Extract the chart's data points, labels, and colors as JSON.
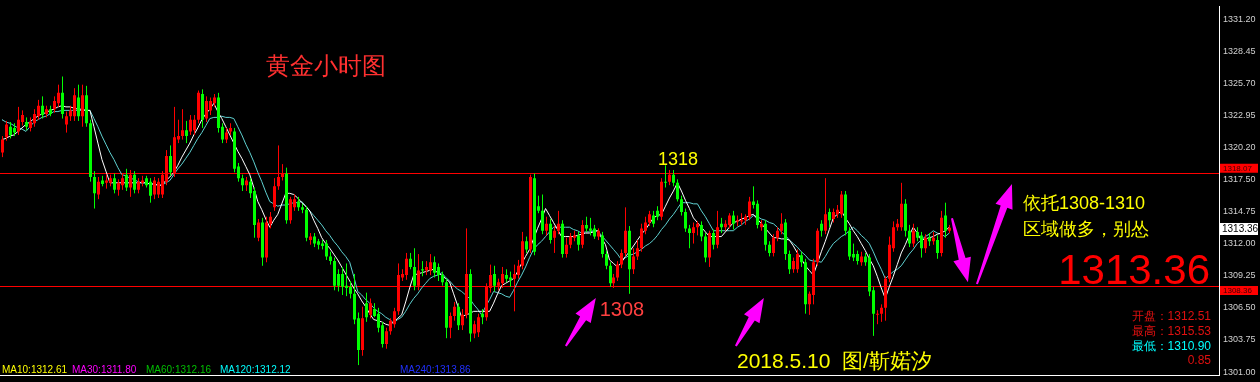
{
  "chart_data": {
    "type": "candlestick",
    "title": "黄金小时图",
    "categories": [
      null,
      null,
      null,
      null,
      null,
      null,
      null,
      null,
      null,
      null,
      null,
      null,
      null,
      null,
      null,
      null,
      null,
      null,
      null,
      null,
      null,
      null,
      null,
      null,
      null,
      null,
      null,
      null,
      null,
      null,
      null,
      null,
      null,
      null,
      null,
      null,
      null,
      null,
      null,
      null,
      null,
      null,
      null,
      null,
      null,
      null,
      null,
      null,
      null,
      null,
      null,
      null,
      null,
      null,
      null,
      null,
      null,
      null,
      null,
      null,
      null,
      null,
      null,
      null,
      null,
      null,
      null,
      null,
      null,
      null,
      null,
      null,
      null,
      null,
      null,
      null,
      null,
      null,
      null,
      null,
      null,
      null,
      null,
      null,
      null,
      null,
      null,
      null,
      null,
      null,
      null,
      null,
      null,
      null,
      null,
      null,
      null,
      null,
      null,
      null,
      null,
      null,
      null,
      null,
      null,
      null,
      null,
      null,
      null,
      null,
      null,
      null,
      null,
      null,
      null,
      null,
      null,
      null,
      null,
      null,
      null,
      null,
      null,
      null,
      null,
      null,
      null,
      null,
      null,
      null,
      null,
      null,
      null,
      null,
      null,
      null,
      null,
      null,
      null,
      null,
      null,
      null,
      null,
      null,
      null,
      null,
      null,
      null,
      null,
      null,
      null,
      null,
      null,
      null,
      null,
      null,
      null,
      null,
      null,
      null,
      null,
      null,
      null,
      null,
      null,
      null,
      null,
      null,
      null,
      null,
      null,
      null,
      null,
      null,
      null,
      null,
      null,
      null,
      null,
      null,
      null,
      null,
      null,
      null,
      null,
      null,
      null,
      null,
      null,
      null,
      null,
      null,
      null,
      null,
      null,
      null,
      null,
      null,
      null,
      null,
      null,
      null,
      null,
      null,
      null,
      null,
      null,
      null,
      null,
      null,
      null,
      null,
      null,
      null,
      null,
      null,
      null,
      null,
      null,
      null,
      null,
      null,
      null,
      null,
      null,
      null,
      null,
      null,
      null,
      null,
      null,
      null,
      null,
      null,
      null,
      null,
      null,
      null
    ],
    "ohlc": [
      [
        1319.8,
        1321.2,
        1319.4,
        1320.9
      ],
      [
        1321.1,
        1322.5,
        1320.8,
        1322.2
      ],
      [
        1322.0,
        1322.4,
        1321.0,
        1321.3
      ],
      [
        1321.9,
        1322.3,
        1321.2,
        1321.5
      ],
      [
        1321.6,
        1323.7,
        1321.3,
        1322.6
      ],
      [
        1322.4,
        1323.4,
        1322.1,
        1323.0
      ],
      [
        1322.4,
        1322.8,
        1321.7,
        1322.0
      ],
      [
        1321.9,
        1322.8,
        1321.6,
        1322.4
      ],
      [
        1322.3,
        1323.5,
        1322.0,
        1323.1
      ],
      [
        1322.9,
        1324.3,
        1322.6,
        1323.8
      ],
      [
        1323.8,
        1324.6,
        1322.7,
        1323.0
      ],
      [
        1323.1,
        1323.8,
        1322.8,
        1323.5
      ],
      [
        1323.5,
        1323.8,
        1322.9,
        1323.1
      ],
      [
        1323.5,
        1324.6,
        1323.2,
        1324.2
      ],
      [
        1324.0,
        1325.6,
        1323.7,
        1324.9
      ],
      [
        1324.9,
        1326.3,
        1322.7,
        1323.1
      ],
      [
        1322.2,
        1323.3,
        1321.5,
        1322.9
      ],
      [
        1322.9,
        1323.8,
        1322.5,
        1323.4
      ],
      [
        1322.9,
        1325.3,
        1322.5,
        1324.7
      ],
      [
        1324.5,
        1325.6,
        1322.5,
        1322.9
      ],
      [
        1322.9,
        1325.6,
        1322.0,
        1324.7
      ],
      [
        1324.7,
        1325.5,
        1322.0,
        1322.3
      ],
      [
        1322.3,
        1322.6,
        1317.3,
        1317.7
      ],
      [
        1317.7,
        1318.2,
        1315.0,
        1316.3
      ],
      [
        1316.2,
        1317.7,
        1315.8,
        1317.3
      ],
      [
        1317.4,
        1317.8,
        1316.9,
        1317.1
      ],
      [
        1317.2,
        1317.9,
        1316.7,
        1317.4
      ],
      [
        1317.2,
        1317.9,
        1316.9,
        1317.6
      ],
      [
        1317.6,
        1318.0,
        1316.3,
        1316.6
      ],
      [
        1316.6,
        1317.5,
        1316.1,
        1317.2
      ],
      [
        1317.0,
        1318.0,
        1316.6,
        1317.6
      ],
      [
        1317.9,
        1318.4,
        1316.5,
        1316.8
      ],
      [
        1316.8,
        1318.3,
        1316.0,
        1317.9
      ],
      [
        1317.9,
        1318.2,
        1316.3,
        1316.6
      ],
      [
        1316.6,
        1317.6,
        1316.3,
        1317.3
      ],
      [
        1317.2,
        1317.8,
        1316.9,
        1317.4
      ],
      [
        1317.6,
        1317.8,
        1316.8,
        1317.0
      ],
      [
        1317.3,
        1317.6,
        1315.5,
        1316.1
      ],
      [
        1316.2,
        1317.7,
        1315.8,
        1317.4
      ],
      [
        1316.2,
        1317.6,
        1315.9,
        1317.3
      ],
      [
        1316.2,
        1318.2,
        1315.9,
        1317.9
      ],
      [
        1317.3,
        1320.0,
        1317.0,
        1319.5
      ],
      [
        1319.5,
        1320.4,
        1317.8,
        1318.1
      ],
      [
        1318.0,
        1323.7,
        1317.7,
        1321.1
      ],
      [
        1320.9,
        1322.6,
        1320.6,
        1321.2
      ],
      [
        1321.2,
        1323.5,
        1320.9,
        1321.7
      ],
      [
        1321.7,
        1322.5,
        1320.6,
        1321.2
      ],
      [
        1321.6,
        1323.0,
        1321.3,
        1322.6
      ],
      [
        1321.7,
        1323.0,
        1321.3,
        1322.6
      ],
      [
        1322.6,
        1325.1,
        1322.3,
        1324.9
      ],
      [
        1324.8,
        1325.2,
        1321.9,
        1322.6
      ],
      [
        1322.7,
        1324.6,
        1322.4,
        1324.2
      ],
      [
        1323.4,
        1324.5,
        1323.0,
        1324.2
      ],
      [
        1324.0,
        1324.8,
        1323.7,
        1324.5
      ],
      [
        1324.5,
        1324.9,
        1321.5,
        1321.9
      ],
      [
        1322.0,
        1322.3,
        1320.6,
        1320.9
      ],
      [
        1320.9,
        1321.9,
        1320.6,
        1321.5
      ],
      [
        1321.6,
        1322.3,
        1321.3,
        1321.9
      ],
      [
        1321.6,
        1321.9,
        1318.1,
        1318.4
      ],
      [
        1318.6,
        1318.9,
        1317.3,
        1317.6
      ],
      [
        1317.6,
        1317.9,
        1316.5,
        1317.0
      ],
      [
        1317.0,
        1317.7,
        1316.5,
        1317.4
      ],
      [
        1317.3,
        1317.6,
        1315.9,
        1316.3
      ],
      [
        1316.5,
        1316.8,
        1312.5,
        1313.6
      ],
      [
        1312.5,
        1314.1,
        1312.2,
        1313.8
      ],
      [
        1313.8,
        1314.2,
        1310.1,
        1310.8
      ],
      [
        1310.8,
        1314.3,
        1310.4,
        1313.8
      ],
      [
        1313.7,
        1314.7,
        1313.3,
        1314.3
      ],
      [
        1315.1,
        1317.6,
        1314.8,
        1316.9
      ],
      [
        1316.9,
        1320.4,
        1316.6,
        1317.7
      ],
      [
        1317.7,
        1318.8,
        1317.4,
        1318.0
      ],
      [
        1318.0,
        1318.5,
        1313.7,
        1314.0
      ],
      [
        1314.0,
        1316.0,
        1313.7,
        1315.8
      ],
      [
        1315.1,
        1316.2,
        1314.8,
        1315.8
      ],
      [
        1315.6,
        1316.0,
        1314.8,
        1315.1
      ],
      [
        1315.1,
        1315.4,
        1314.6,
        1314.9
      ],
      [
        1314.9,
        1315.2,
        1312.2,
        1312.5
      ],
      [
        1312.3,
        1312.9,
        1311.9,
        1312.6
      ],
      [
        1312.6,
        1312.9,
        1311.7,
        1312.0
      ],
      [
        1312.2,
        1312.4,
        1311.5,
        1311.9
      ],
      [
        1312.0,
        1312.3,
        1311.5,
        1311.8
      ],
      [
        1312.0,
        1312.3,
        1310.6,
        1310.9
      ],
      [
        1310.9,
        1311.3,
        1310.2,
        1310.5
      ],
      [
        1310.5,
        1310.8,
        1308.0,
        1308.4
      ],
      [
        1309.4,
        1309.8,
        1307.9,
        1308.4
      ],
      [
        1309.4,
        1310.0,
        1307.6,
        1308.3
      ],
      [
        1308.4,
        1310.3,
        1307.5,
        1308.2
      ],
      [
        1308.3,
        1308.8,
        1307.3,
        1307.7
      ],
      [
        1307.7,
        1309.4,
        1305.1,
        1305.5
      ],
      [
        1305.6,
        1306.1,
        1301.6,
        1302.9
      ],
      [
        1302.9,
        1306.6,
        1302.4,
        1305.6
      ],
      [
        1306.9,
        1307.8,
        1305.3,
        1305.7
      ],
      [
        1305.9,
        1307.3,
        1305.6,
        1306.9
      ],
      [
        1306.4,
        1306.9,
        1305.7,
        1305.8
      ],
      [
        1306.0,
        1306.5,
        1304.4,
        1304.8
      ],
      [
        1305.0,
        1305.3,
        1303.1,
        1303.4
      ],
      [
        1303.4,
        1304.8,
        1303.0,
        1304.5
      ],
      [
        1304.5,
        1305.6,
        1304.2,
        1305.4
      ],
      [
        1305.1,
        1306.5,
        1304.8,
        1306.2
      ],
      [
        1306.2,
        1310.3,
        1305.9,
        1309.3
      ],
      [
        1309.1,
        1309.8,
        1308.8,
        1309.4
      ],
      [
        1309.3,
        1311.2,
        1308.9,
        1310.7
      ],
      [
        1310.7,
        1311.2,
        1309.8,
        1310.0
      ],
      [
        1310.0,
        1311.6,
        1308.0,
        1308.4
      ],
      [
        1308.4,
        1311.1,
        1308.0,
        1309.7
      ],
      [
        1309.8,
        1310.5,
        1309.2,
        1309.7
      ],
      [
        1309.7,
        1310.5,
        1309.3,
        1310.0
      ],
      [
        1309.7,
        1311.1,
        1309.3,
        1310.4
      ],
      [
        1310.4,
        1310.9,
        1309.1,
        1309.5
      ],
      [
        1310.0,
        1310.3,
        1308.8,
        1309.3
      ],
      [
        1309.3,
        1309.6,
        1308.4,
        1308.7
      ],
      [
        1308.7,
        1309.0,
        1303.9,
        1304.8
      ],
      [
        1304.8,
        1306.1,
        1303.9,
        1305.8
      ],
      [
        1305.8,
        1307.0,
        1305.4,
        1306.6
      ],
      [
        1306.6,
        1306.9,
        1304.6,
        1305.0
      ],
      [
        1305.0,
        1306.4,
        1304.6,
        1305.9
      ],
      [
        1305.9,
        1313.3,
        1305.6,
        1309.4
      ],
      [
        1309.4,
        1309.8,
        1303.6,
        1304.3
      ],
      [
        1304.3,
        1305.4,
        1303.9,
        1305.1
      ],
      [
        1304.4,
        1306.0,
        1304.0,
        1305.7
      ],
      [
        1306.0,
        1306.4,
        1305.1,
        1305.7
      ],
      [
        1305.7,
        1308.6,
        1305.4,
        1308.3
      ],
      [
        1308.2,
        1310.2,
        1307.8,
        1309.3
      ],
      [
        1309.4,
        1310.1,
        1307.9,
        1308.4
      ],
      [
        1308.4,
        1309.0,
        1308.0,
        1308.7
      ],
      [
        1308.6,
        1310.0,
        1308.2,
        1309.4
      ],
      [
        1309.3,
        1309.8,
        1308.7,
        1309.0
      ],
      [
        1309.1,
        1309.6,
        1308.3,
        1308.9
      ],
      [
        1309.0,
        1310.2,
        1306.2,
        1309.4
      ],
      [
        1309.3,
        1310.6,
        1309.0,
        1310.1
      ],
      [
        1310.1,
        1313.0,
        1309.8,
        1312.2
      ],
      [
        1312.2,
        1312.6,
        1311.2,
        1311.5
      ],
      [
        1311.5,
        1317.9,
        1311.2,
        1317.7
      ],
      [
        1317.6,
        1318.0,
        1311.0,
        1311.3
      ],
      [
        1315.2,
        1316.1,
        1314.6,
        1314.8
      ],
      [
        1314.8,
        1316.2,
        1312.8,
        1313.1
      ],
      [
        1313.1,
        1314.3,
        1312.7,
        1313.7
      ],
      [
        1313.7,
        1314.1,
        1312.0,
        1312.3
      ],
      [
        1312.5,
        1313.5,
        1311.2,
        1313.1
      ],
      [
        1313.1,
        1314.8,
        1312.8,
        1313.7
      ],
      [
        1313.7,
        1314.0,
        1310.8,
        1311.1
      ],
      [
        1311.1,
        1312.5,
        1310.8,
        1311.9
      ],
      [
        1311.9,
        1312.9,
        1311.6,
        1312.6
      ],
      [
        1312.5,
        1313.1,
        1312.2,
        1312.7
      ],
      [
        1312.7,
        1313.0,
        1311.4,
        1311.9
      ],
      [
        1311.9,
        1314.0,
        1311.6,
        1313.6
      ],
      [
        1313.6,
        1314.3,
        1313.0,
        1313.3
      ],
      [
        1313.3,
        1314.2,
        1312.7,
        1313.1
      ],
      [
        1313.3,
        1313.6,
        1312.4,
        1312.6
      ],
      [
        1312.6,
        1313.3,
        1312.3,
        1313.1
      ],
      [
        1312.7,
        1313.0,
        1310.8,
        1311.1
      ],
      [
        1311.1,
        1311.4,
        1309.8,
        1310.1
      ],
      [
        1310.1,
        1310.4,
        1308.3,
        1308.6
      ],
      [
        1308.6,
        1309.4,
        1308.2,
        1309.1
      ],
      [
        1309.1,
        1310.5,
        1308.8,
        1310.2
      ],
      [
        1310.2,
        1311.5,
        1309.9,
        1311.2
      ],
      [
        1311.2,
        1315.1,
        1310.9,
        1313.1
      ],
      [
        1313.1,
        1313.5,
        1307.7,
        1309.8
      ],
      [
        1309.8,
        1311.6,
        1309.4,
        1310.9
      ],
      [
        1310.9,
        1312.3,
        1310.6,
        1311.6
      ],
      [
        1311.6,
        1313.7,
        1311.3,
        1313.3
      ],
      [
        1313.1,
        1314.3,
        1312.8,
        1313.8
      ],
      [
        1313.8,
        1314.8,
        1313.5,
        1314.5
      ],
      [
        1314.4,
        1314.8,
        1313.4,
        1313.7
      ],
      [
        1314.8,
        1315.2,
        1314.0,
        1314.3
      ],
      [
        1314.3,
        1317.6,
        1314.0,
        1317.3
      ],
      [
        1317.3,
        1318.7,
        1316.8,
        1317.2
      ],
      [
        1317.3,
        1318.3,
        1317.0,
        1317.9
      ],
      [
        1317.9,
        1318.3,
        1316.9,
        1317.2
      ],
      [
        1317.2,
        1317.5,
        1315.6,
        1315.8
      ],
      [
        1315.8,
        1316.1,
        1314.4,
        1314.7
      ],
      [
        1314.7,
        1315.0,
        1313.0,
        1313.3
      ],
      [
        1313.3,
        1313.6,
        1311.6,
        1312.9
      ],
      [
        1312.9,
        1313.8,
        1312.0,
        1313.4
      ],
      [
        1313.4,
        1313.9,
        1312.7,
        1313.7
      ],
      [
        1313.6,
        1313.9,
        1312.2,
        1312.6
      ],
      [
        1312.6,
        1312.9,
        1310.4,
        1310.8
      ],
      [
        1310.8,
        1313.1,
        1310.0,
        1312.9
      ],
      [
        1312.9,
        1313.2,
        1311.5,
        1311.9
      ],
      [
        1311.9,
        1314.8,
        1311.6,
        1313.4
      ],
      [
        1313.7,
        1314.2,
        1312.9,
        1313.4
      ],
      [
        1313.4,
        1314.0,
        1313.1,
        1313.7
      ],
      [
        1313.6,
        1314.6,
        1313.3,
        1314.4
      ],
      [
        1314.4,
        1314.8,
        1313.2,
        1313.7
      ],
      [
        1313.9,
        1314.4,
        1313.5,
        1314.0
      ],
      [
        1313.9,
        1314.6,
        1313.6,
        1314.0
      ],
      [
        1314.0,
        1314.5,
        1313.6,
        1314.3
      ],
      [
        1314.3,
        1316.0,
        1314.0,
        1315.6
      ],
      [
        1315.6,
        1316.9,
        1315.0,
        1315.3
      ],
      [
        1315.4,
        1315.7,
        1313.3,
        1313.6
      ],
      [
        1313.4,
        1314.0,
        1313.1,
        1313.7
      ],
      [
        1313.7,
        1314.0,
        1311.4,
        1311.9
      ],
      [
        1311.9,
        1312.2,
        1310.9,
        1311.2
      ],
      [
        1311.2,
        1312.8,
        1310.9,
        1312.5
      ],
      [
        1312.5,
        1313.4,
        1312.2,
        1313.1
      ],
      [
        1313.1,
        1314.6,
        1312.8,
        1313.7
      ],
      [
        1313.8,
        1314.1,
        1310.6,
        1311.1
      ],
      [
        1311.1,
        1311.4,
        1309.4,
        1309.8
      ],
      [
        1309.8,
        1310.8,
        1309.5,
        1310.5
      ],
      [
        1309.8,
        1311.5,
        1309.5,
        1311.1
      ],
      [
        1311.0,
        1311.3,
        1310.0,
        1310.4
      ],
      [
        1310.4,
        1310.7,
        1306.0,
        1306.8
      ],
      [
        1306.8,
        1307.9,
        1305.9,
        1307.7
      ],
      [
        1307.6,
        1310.7,
        1306.8,
        1310.4
      ],
      [
        1310.4,
        1313.3,
        1310.1,
        1313.1
      ],
      [
        1313.7,
        1314.0,
        1312.6,
        1313.1
      ],
      [
        1313.1,
        1317.6,
        1312.8,
        1314.5
      ],
      [
        1314.7,
        1315.0,
        1313.4,
        1314.0
      ],
      [
        1314.1,
        1315.0,
        1313.8,
        1314.7
      ],
      [
        1314.5,
        1315.3,
        1314.2,
        1314.9
      ],
      [
        1314.5,
        1316.5,
        1314.2,
        1316.2
      ],
      [
        1316.2,
        1316.5,
        1312.7,
        1313.1
      ],
      [
        1313.1,
        1313.4,
        1310.6,
        1310.9
      ],
      [
        1311.1,
        1312.0,
        1310.5,
        1310.8
      ],
      [
        1311.1,
        1311.4,
        1310.2,
        1310.5
      ],
      [
        1310.4,
        1311.3,
        1310.1,
        1310.9
      ],
      [
        1310.9,
        1311.2,
        1310.1,
        1310.4
      ],
      [
        1310.8,
        1311.1,
        1307.5,
        1307.9
      ],
      [
        1308.0,
        1308.3,
        1304.1,
        1306.0
      ],
      [
        1305.9,
        1306.3,
        1305.1,
        1306.0
      ],
      [
        1306.0,
        1306.8,
        1305.3,
        1306.5
      ],
      [
        1306.5,
        1309.2,
        1305.4,
        1309.0
      ],
      [
        1309.0,
        1312.6,
        1308.7,
        1311.9
      ],
      [
        1311.6,
        1313.9,
        1311.3,
        1313.4
      ],
      [
        1313.4,
        1314.1,
        1313.1,
        1313.7
      ],
      [
        1313.4,
        1317.2,
        1313.1,
        1315.4
      ],
      [
        1315.4,
        1315.8,
        1312.6,
        1313.1
      ],
      [
        1313.1,
        1313.6,
        1311.7,
        1312.0
      ],
      [
        1312.0,
        1313.7,
        1311.7,
        1313.1
      ],
      [
        1313.0,
        1313.4,
        1312.2,
        1312.5
      ],
      [
        1312.7,
        1313.0,
        1310.8,
        1311.6
      ],
      [
        1311.6,
        1312.8,
        1311.2,
        1312.5
      ],
      [
        1312.5,
        1312.9,
        1311.8,
        1312.2
      ],
      [
        1312.2,
        1313.0,
        1311.9,
        1312.5
      ],
      [
        1312.3,
        1312.7,
        1310.7,
        1311.2
      ],
      [
        1311.2,
        1314.8,
        1310.9,
        1314.2
      ],
      [
        1314.4,
        1315.5,
        1312.5,
        1313.1
      ],
      [
        1313.1,
        1313.6,
        1312.9,
        1313.36
      ]
    ],
    "colors": [
      "#ff0000",
      "#ff0000",
      "#00ff00",
      "#00ff00",
      "#ff0000",
      "#ff0000",
      "#00ff00",
      "#ff0000",
      "#ff0000",
      "#ff0000",
      "#00ff00",
      "#ff0000",
      "#00ff00",
      "#ff0000",
      "#ff0000",
      "#00ff00",
      "#ff0000",
      "#ff0000",
      "#ff0000",
      "#00ff00",
      "#ff0000",
      "#00ff00",
      "#00ff00",
      "#00ff00",
      "#ff0000",
      "#00ff00",
      "#ff0000",
      "#ff0000",
      "#00ff00",
      "#ff0000",
      "#ff0000",
      "#00ff00",
      "#ff0000",
      "#00ff00",
      "#ff0000",
      "#ff0000",
      "#00ff00",
      "#00ff00",
      "#ff0000",
      "#ff0000",
      "#ff0000",
      "#ff0000",
      "#00ff00",
      "#ff0000",
      "#ff0000",
      "#ff0000",
      "#00ff00",
      "#ff0000",
      "#ff0000",
      "#ff0000",
      "#00ff00",
      "#ff0000",
      "#ff0000",
      "#ff0000",
      "#00ff00",
      "#00ff00",
      "#ff0000",
      "#ff0000",
      "#00ff00",
      "#00ff00",
      "#00ff00",
      "#ff0000",
      "#00ff00",
      "#00ff00",
      "#ff0000",
      "#00ff00",
      "#ff0000",
      "#ff0000",
      "#ff0000",
      "#ff0000",
      "#ff0000",
      "#00ff00",
      "#ff0000",
      "#ff0000",
      "#00ff00",
      "#00ff00",
      "#00ff00",
      "#ff0000",
      "#00ff00",
      "#00ff00",
      "#00ff00",
      "#00ff00",
      "#00ff00",
      "#00ff00",
      "#00ff00",
      "#00ff00",
      "#00ff00",
      "#00ff00",
      "#00ff00",
      "#00ff00",
      "#ff0000",
      "#00ff00",
      "#ff0000",
      "#00ff00",
      "#00ff00",
      "#00ff00",
      "#ff0000",
      "#ff0000",
      "#ff0000",
      "#ff0000",
      "#ff0000",
      "#ff0000",
      "#00ff00",
      "#00ff00",
      "#ff0000",
      "#00ff00",
      "#ff0000",
      "#ff0000",
      "#00ff00",
      "#00ff00",
      "#00ff00",
      "#00ff00",
      "#ff0000",
      "#ff0000",
      "#00ff00",
      "#ff0000",
      "#ff0000",
      "#00ff00",
      "#ff0000",
      "#ff0000",
      "#00ff00",
      "#ff0000",
      "#ff0000",
      "#00ff00",
      "#ff0000",
      "#ff0000",
      "#00ff00",
      "#00ff00",
      "#ff0000",
      "#ff0000",
      "#ff0000",
      "#00ff00",
      "#ff0000",
      "#00ff00",
      "#00ff00",
      "#00ff00",
      "#ff0000",
      "#00ff00",
      "#ff0000",
      "#ff0000",
      "#00ff00",
      "#ff0000",
      "#ff0000",
      "#ff0000",
      "#00ff00",
      "#ff0000",
      "#00ff00",
      "#00ff00",
      "#00ff00",
      "#ff0000",
      "#00ff00",
      "#00ff00",
      "#00ff00",
      "#ff0000",
      "#ff0000",
      "#ff0000",
      "#ff0000",
      "#00ff00",
      "#ff0000",
      "#ff0000",
      "#ff0000",
      "#ff0000",
      "#ff0000",
      "#00ff00",
      "#00ff00",
      "#ff0000",
      "#00ff00",
      "#ff0000",
      "#00ff00",
      "#00ff00",
      "#00ff00",
      "#00ff00",
      "#00ff00",
      "#ff0000",
      "#ff0000",
      "#00ff00",
      "#00ff00",
      "#ff0000",
      "#00ff00",
      "#ff0000",
      "#00ff00",
      "#ff0000",
      "#ff0000",
      "#00ff00",
      "#ff0000",
      "#ff0000",
      "#ff0000",
      "#ff0000",
      "#00ff00",
      "#00ff00",
      "#ff0000",
      "#00ff00",
      "#00ff00",
      "#ff0000",
      "#ff0000",
      "#ff0000",
      "#00ff00",
      "#00ff00",
      "#ff0000",
      "#ff0000",
      "#00ff00",
      "#00ff00",
      "#ff0000",
      "#ff0000",
      "#ff0000",
      "#00ff00",
      "#ff0000",
      "#00ff00",
      "#ff0000",
      "#ff0000",
      "#ff0000",
      "#00ff00",
      "#00ff00",
      "#00ff00",
      "#00ff00",
      "#ff0000",
      "#00ff00",
      "#00ff00",
      "#00ff00",
      "#ff0000",
      "#ff0000",
      "#ff0000",
      "#ff0000",
      "#ff0000",
      "#ff0000",
      "#ff0000",
      "#00ff00",
      "#00ff00",
      "#ff0000",
      "#00ff00",
      "#00ff00",
      "#ff0000",
      "#00ff00",
      "#ff0000",
      "#00ff00",
      "#ff0000",
      "#00ff00",
      "#ff0000"
    ],
    "series": [
      {
        "type": "line",
        "color": "#ffffff",
        "values": [
          1320.9,
          1321.0,
          1321.2,
          1321.3,
          1321.6,
          1321.9,
          1322.2,
          1322.4,
          1322.7,
          1322.9,
          1323.1,
          1323.2,
          1323.4,
          1323.5,
          1323.7,
          1323.8,
          1323.7,
          1323.7,
          1323.6,
          1323.5,
          1323.5,
          1323.4,
          1323.4,
          1322.0,
          1320.6,
          1319.2,
          1318.2,
          1317.2,
          1317.2,
          1317.2,
          1317.2,
          1317.2,
          1317.2,
          1317.2,
          1317.2,
          1317.2,
          1317.2,
          1317.1,
          1317.1,
          1317.0,
          1317.0,
          1317.4,
          1317.7,
          1318.1,
          1318.7,
          1319.4,
          1320.0,
          1320.6,
          1321.3,
          1321.9,
          1322.6,
          1323.1,
          1323.5,
          1324.0,
          1323.3,
          1322.7,
          1322.0,
          1321.3,
          1320.6,
          1319.9,
          1319.3,
          1318.6,
          1317.9,
          1316.8,
          1315.6,
          1314.9,
          1314.1,
          1313.4,
          1314.0,
          1314.5,
          1315.4,
          1316.3,
          1316.3,
          1316.2,
          1315.9,
          1315.5,
          1315.2,
          1314.8,
          1314.0,
          1313.3,
          1312.5,
          1312.0,
          1311.6,
          1311.1,
          1310.6,
          1310.0,
          1309.4,
          1308.8,
          1308.2,
          1307.7,
          1307.1,
          1306.6,
          1306.0,
          1305.5,
          1305.4,
          1305.3,
          1305.1,
          1305.0,
          1305.3,
          1305.6,
          1305.9,
          1307.0,
          1308.2,
          1309.3,
          1309.4,
          1309.5,
          1309.6,
          1309.7,
          1309.8,
          1309.5,
          1309.3,
          1309.0,
          1308.7,
          1307.7,
          1306.7,
          1305.7,
          1305.9,
          1306.0,
          1306.2,
          1306.2,
          1306.2,
          1306.2,
          1306.2,
          1306.9,
          1307.7,
          1308.4,
          1308.6,
          1308.8,
          1309.0,
          1309.6,
          1310.3,
          1310.9,
          1311.5,
          1312.4,
          1313.3,
          1314.1,
          1315.0,
          1314.4,
          1313.8,
          1313.2,
          1312.6,
          1312.6,
          1312.6,
          1312.6,
          1312.7,
          1312.8,
          1312.9,
          1312.9,
          1313.0,
          1313.1,
          1312.5,
          1311.9,
          1310.6,
          1310.3,
          1310.0,
          1310.4,
          1310.9,
          1311.3,
          1311.8,
          1312.3,
          1312.8,
          1313.2,
          1313.7,
          1314.2,
          1314.4,
          1314.5,
          1315.2,
          1315.9,
          1316.5,
          1317.2,
          1316.5,
          1315.7,
          1315.0,
          1314.2,
          1313.8,
          1313.4,
          1313.0,
          1312.6,
          1312.6,
          1312.6,
          1312.6,
          1313.0,
          1313.4,
          1313.8,
          1313.9,
          1314.1,
          1314.2,
          1314.4,
          1314.5,
          1314.1,
          1313.7,
          1313.3,
          1312.9,
          1312.5,
          1312.5,
          1312.4,
          1312.4,
          1312.3,
          1311.8,
          1311.2,
          1310.7,
          1310.1,
          1309.7,
          1309.3,
          1310.3,
          1311.3,
          1312.2,
          1313.2,
          1314.2,
          1314.5,
          1314.8,
          1314.2,
          1313.7,
          1313.1,
          1312.6,
          1312.0,
          1311.4,
          1310.7,
          1310.1,
          1309.2,
          1308.2,
          1307.3,
          1308.3,
          1309.2,
          1310.2,
          1311.2,
          1311.9,
          1312.7,
          1313.4,
          1312.9,
          1312.3,
          1312.4,
          1312.5,
          1312.6,
          1312.8,
          1312.9,
          1313.1,
          1313.4
        ]
      },
      {
        "type": "line",
        "color": "#5fd0d0",
        "values": [
          1322.6,
          1322.4,
          1322.3,
          1322.1,
          1321.9,
          1321.8,
          1321.6,
          1322.0,
          1322.4,
          1322.6,
          1322.8,
          1322.9,
          1323.1,
          1323.3,
          1323.3,
          1323.4,
          1323.4,
          1323.4,
          1323.4,
          1323.4,
          1323.4,
          1323.4,
          1323.4,
          1322.7,
          1322.0,
          1321.2,
          1320.5,
          1319.8,
          1319.2,
          1318.5,
          1317.9,
          1317.8,
          1317.6,
          1317.5,
          1317.3,
          1317.2,
          1317.2,
          1317.1,
          1317.1,
          1317.0,
          1317.0,
          1317.2,
          1317.4,
          1317.9,
          1318.4,
          1318.8,
          1319.3,
          1319.8,
          1320.4,
          1321.0,
          1321.5,
          1322.1,
          1322.7,
          1322.8,
          1322.8,
          1322.9,
          1322.8,
          1322.8,
          1322.7,
          1322.0,
          1321.3,
          1320.5,
          1319.8,
          1319.0,
          1318.1,
          1317.3,
          1316.4,
          1315.6,
          1315.4,
          1315.2,
          1315.3,
          1315.3,
          1315.4,
          1315.5,
          1315.5,
          1315.6,
          1315.2,
          1314.8,
          1314.4,
          1314.0,
          1313.6,
          1313.1,
          1312.7,
          1312.2,
          1311.8,
          1311.3,
          1310.9,
          1310.4,
          1309.2,
          1307.9,
          1307.6,
          1307.2,
          1306.9,
          1306.5,
          1306.2,
          1306.0,
          1305.7,
          1305.5,
          1305.2,
          1305.5,
          1305.7,
          1306.2,
          1306.8,
          1307.3,
          1307.7,
          1308.2,
          1308.6,
          1309.0,
          1309.2,
          1309.3,
          1309.5,
          1309.1,
          1308.8,
          1308.4,
          1308.1,
          1307.9,
          1307.6,
          1307.3,
          1306.8,
          1306.4,
          1305.9,
          1306.6,
          1307.2,
          1307.9,
          1307.8,
          1307.7,
          1307.5,
          1307.4,
          1308.0,
          1308.7,
          1309.3,
          1310.0,
          1310.8,
          1311.5,
          1311.9,
          1312.2,
          1312.6,
          1313.0,
          1313.4,
          1313.4,
          1313.4,
          1313.4,
          1313.4,
          1313.2,
          1313.1,
          1312.9,
          1313.0,
          1313.0,
          1313.1,
          1313.1,
          1312.7,
          1312.3,
          1311.9,
          1311.5,
          1311.1,
          1310.6,
          1310.8,
          1311.0,
          1311.1,
          1311.3,
          1311.5,
          1311.8,
          1312.0,
          1312.3,
          1312.7,
          1313.2,
          1313.6,
          1314.1,
          1314.5,
          1315.0,
          1315.5,
          1315.5,
          1315.5,
          1315.4,
          1315.4,
          1314.8,
          1314.3,
          1313.7,
          1313.1,
          1313.1,
          1313.1,
          1313.1,
          1313.1,
          1313.1,
          1313.4,
          1313.6,
          1313.9,
          1314.1,
          1314.4,
          1314.3,
          1314.1,
          1314.0,
          1313.8,
          1313.7,
          1313.4,
          1313.0,
          1312.7,
          1312.3,
          1312.0,
          1311.7,
          1311.3,
          1311.0,
          1310.6,
          1310.5,
          1310.5,
          1310.4,
          1310.9,
          1311.5,
          1312.0,
          1312.3,
          1312.6,
          1312.8,
          1313.1,
          1313.4,
          1313.1,
          1312.7,
          1312.4,
          1312.0,
          1311.3,
          1310.5,
          1309.8,
          1309.0,
          1309.3,
          1309.6,
          1309.8,
          1310.1,
          1310.6,
          1311.1,
          1311.5,
          1312.0,
          1312.3,
          1312.6,
          1312.8,
          1313.1,
          1312.9,
          1312.8,
          1312.6,
          1312.9
        ]
      }
    ],
    "ylim": [
      1300.7,
      1332.3
    ],
    "yticks": [
      {
        "value": 1331.2,
        "label": "1331.20"
      },
      {
        "value": 1328.45,
        "label": "1328.45"
      },
      {
        "value": 1325.7,
        "label": "1325.70"
      },
      {
        "value": 1322.95,
        "label": "1322.95"
      },
      {
        "value": 1320.2,
        "label": "1320.20"
      },
      {
        "value": 1317.5,
        "label": "1317.50"
      },
      {
        "value": 1314.75,
        "label": "1314.75"
      },
      {
        "value": 1312,
        "label": "1312.00"
      },
      {
        "value": 1309.25,
        "label": "1309.25"
      },
      {
        "value": 1306.5,
        "label": "1306.50"
      },
      {
        "value": 1303.75,
        "label": "1303.75"
      },
      {
        "value": 1301,
        "label": "1301.00"
      }
    ],
    "tick_labels": "y",
    "ref_lines": [
      {
        "axis": "y",
        "value": 1318.07,
        "label": "1318.07",
        "color": "#ff0000"
      },
      {
        "axis": "y",
        "value": 1308.36,
        "label": "1308.36",
        "color": "#ff0000"
      }
    ],
    "annotations": [
      {
        "text": "1318",
        "y": 1318
      },
      {
        "text": "1308",
        "y": 1308
      },
      "依托1308-1310",
      "区域做多，别怂",
      "2018.5.10  图/靳婼汐",
      "1313.36",
      "开盘：1312.51",
      "最高：1315.53",
      "最低：1310.90",
      "0.85",
      "MA10:1312.61",
      "MA30:1311.80",
      "MA60:1312.16",
      "MA120:1312.12",
      "MA240:1313.86",
      "1313.36"
    ]
  }
}
